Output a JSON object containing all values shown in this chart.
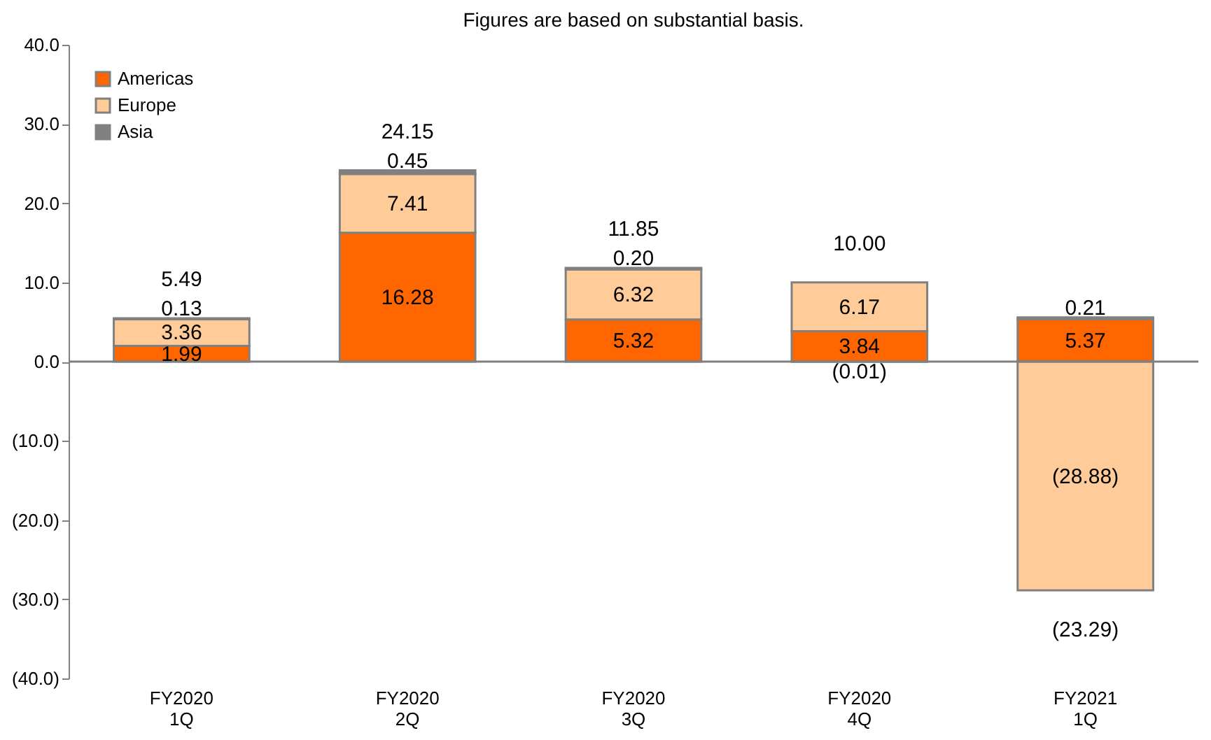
{
  "chart_data": {
    "type": "bar",
    "stacked": true,
    "subtitle": "Figures are based on substantial basis.",
    "categories": [
      "FY2020\n1Q",
      "FY2020\n2Q",
      "FY2020\n3Q",
      "FY2020\n4Q",
      "FY2021\n1Q"
    ],
    "series": [
      {
        "name": "Americas",
        "color": "#ff6600",
        "values": [
          1.99,
          16.28,
          5.32,
          3.84,
          5.37
        ],
        "value_labels": [
          "1.99",
          "16.28",
          "5.32",
          "3.84",
          "5.37"
        ]
      },
      {
        "name": "Europe",
        "color": "#ffcc99",
        "values": [
          3.36,
          7.41,
          6.32,
          6.17,
          -28.88
        ],
        "value_labels": [
          "3.36",
          "7.41",
          "6.32",
          "6.17",
          "(28.88)"
        ]
      },
      {
        "name": "Asia",
        "color": "#808080",
        "values": [
          0.13,
          0.45,
          0.2,
          -0.01,
          0.21
        ],
        "value_labels": [
          "0.13",
          "0.45",
          "0.20",
          "(0.01)",
          "0.21"
        ]
      }
    ],
    "totals": [
      "5.49",
      "24.15",
      "11.85",
      "10.00",
      "(23.29)"
    ],
    "ylim": [
      -40,
      40
    ],
    "yticks": [
      {
        "value": -40,
        "label": "(40.0)"
      },
      {
        "value": -30,
        "label": "(30.0)"
      },
      {
        "value": -20,
        "label": "(20.0)"
      },
      {
        "value": -10,
        "label": "(10.0)"
      },
      {
        "value": 0,
        "label": "0.0"
      },
      {
        "value": 10,
        "label": "10.0"
      },
      {
        "value": 20,
        "label": "20.0"
      },
      {
        "value": 30,
        "label": "30.0"
      },
      {
        "value": 40,
        "label": "40.0"
      }
    ],
    "ref_lines": [
      {
        "axis": "y",
        "value": 0,
        "color": "#808080"
      }
    ],
    "grid": false,
    "legend": "top left"
  }
}
